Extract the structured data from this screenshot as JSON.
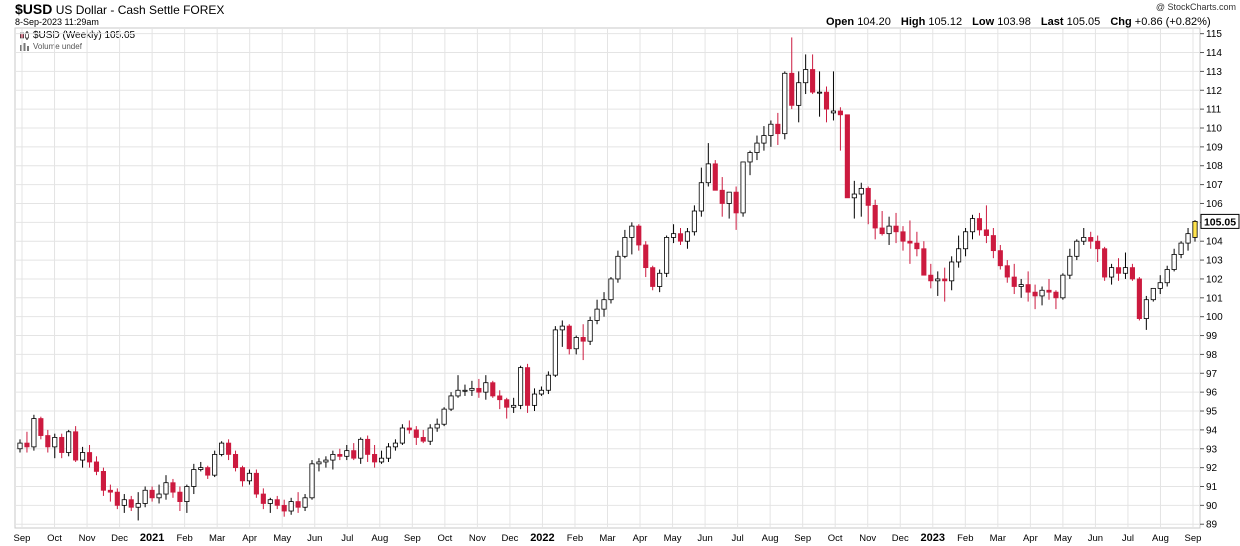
{
  "header": {
    "symbol": "$USD",
    "name": "US Dollar - Cash Settle",
    "exchange": "FOREX",
    "datetime": "8-Sep-2023 11:29am",
    "brand": "@ StockCharts.com"
  },
  "ohlc": {
    "open_label": "Open",
    "open": "104.20",
    "high_label": "High",
    "high": "105.12",
    "low_label": "Low",
    "low": "103.98",
    "last_label": "Last",
    "last": "105.05",
    "chg_label": "Chg",
    "chg": "+0.86 (+0.82%)"
  },
  "legend": {
    "series_label": "$USD (Weekly) 105.05",
    "volume_label": "Volume undef"
  },
  "colors": {
    "up_fill": "#ffffff",
    "down_fill": "#cc1a3f",
    "last_fill": "#ffe34d",
    "outline": "#000000",
    "grid": "#e4e4e4"
  },
  "chart_data": {
    "type": "candlestick",
    "period": "Weekly",
    "ylim": [
      88.8,
      115.3
    ],
    "y_ticks": [
      89,
      90,
      91,
      92,
      93,
      94,
      95,
      96,
      97,
      98,
      99,
      100,
      101,
      102,
      103,
      104,
      105,
      106,
      107,
      108,
      109,
      110,
      111,
      112,
      113,
      114,
      115
    ],
    "x_tick_labels": [
      "Sep",
      "Oct",
      "Nov",
      "Dec",
      "2021",
      "Feb",
      "Mar",
      "Apr",
      "May",
      "Jun",
      "Jul",
      "Aug",
      "Sep",
      "Oct",
      "Nov",
      "Dec",
      "2022",
      "Feb",
      "Mar",
      "Apr",
      "May",
      "Jun",
      "Jul",
      "Aug",
      "Sep",
      "Oct",
      "Nov",
      "Dec",
      "2023",
      "Feb",
      "Mar",
      "Apr",
      "May",
      "Jun",
      "Jul",
      "Aug",
      "Sep"
    ],
    "last_price_label": "105.05",
    "ohlc": [
      [
        93.0,
        93.5,
        92.8,
        93.3
      ],
      [
        93.3,
        93.9,
        92.8,
        93.1
      ],
      [
        93.1,
        94.8,
        92.9,
        94.6
      ],
      [
        94.6,
        94.7,
        93.5,
        93.7
      ],
      [
        93.7,
        94.0,
        92.8,
        93.1
      ],
      [
        93.1,
        93.8,
        92.5,
        93.6
      ],
      [
        93.6,
        93.8,
        92.5,
        92.8
      ],
      [
        92.8,
        94.0,
        92.6,
        93.9
      ],
      [
        93.9,
        94.2,
        92.3,
        92.4
      ],
      [
        92.4,
        93.1,
        92.0,
        92.8
      ],
      [
        92.8,
        93.2,
        92.0,
        92.3
      ],
      [
        92.3,
        92.6,
        91.6,
        91.8
      ],
      [
        91.8,
        92.0,
        90.5,
        90.8
      ],
      [
        90.8,
        91.1,
        90.2,
        90.7
      ],
      [
        90.7,
        90.9,
        89.8,
        90.0
      ],
      [
        90.0,
        90.6,
        89.6,
        90.3
      ],
      [
        90.3,
        90.5,
        89.7,
        89.9
      ],
      [
        89.9,
        90.7,
        89.2,
        90.1
      ],
      [
        90.1,
        91.0,
        89.9,
        90.8
      ],
      [
        90.8,
        91.0,
        90.2,
        90.4
      ],
      [
        90.4,
        91.1,
        90.1,
        90.6
      ],
      [
        90.6,
        91.6,
        90.3,
        91.2
      ],
      [
        91.2,
        91.4,
        90.4,
        90.7
      ],
      [
        90.7,
        91.0,
        89.7,
        90.2
      ],
      [
        90.2,
        91.1,
        89.6,
        91.0
      ],
      [
        91.0,
        92.2,
        90.6,
        91.9
      ],
      [
        91.9,
        92.3,
        91.8,
        92.0
      ],
      [
        92.0,
        92.1,
        91.4,
        91.6
      ],
      [
        91.6,
        92.9,
        91.5,
        92.7
      ],
      [
        92.7,
        93.4,
        92.6,
        93.3
      ],
      [
        93.3,
        93.5,
        92.4,
        92.7
      ],
      [
        92.7,
        92.9,
        91.8,
        92.0
      ],
      [
        92.0,
        92.1,
        91.0,
        91.3
      ],
      [
        91.3,
        91.9,
        91.1,
        91.7
      ],
      [
        91.7,
        91.9,
        90.4,
        90.6
      ],
      [
        90.6,
        90.9,
        89.8,
        90.1
      ],
      [
        90.1,
        90.4,
        89.6,
        90.3
      ],
      [
        90.3,
        90.5,
        89.8,
        90.0
      ],
      [
        90.0,
        90.3,
        89.4,
        89.7
      ],
      [
        89.7,
        90.4,
        89.5,
        90.2
      ],
      [
        90.2,
        90.7,
        89.6,
        89.9
      ],
      [
        89.9,
        90.6,
        89.7,
        90.4
      ],
      [
        90.4,
        92.4,
        90.3,
        92.2
      ],
      [
        92.2,
        92.5,
        91.8,
        92.3
      ],
      [
        92.3,
        92.6,
        92.0,
        92.4
      ],
      [
        92.4,
        92.9,
        91.9,
        92.7
      ],
      [
        92.7,
        93.0,
        92.4,
        92.6
      ],
      [
        92.6,
        93.2,
        92.4,
        92.9
      ],
      [
        92.9,
        93.3,
        92.4,
        92.5
      ],
      [
        92.5,
        93.6,
        92.2,
        93.5
      ],
      [
        93.5,
        93.7,
        92.3,
        92.7
      ],
      [
        92.7,
        93.2,
        92.0,
        92.3
      ],
      [
        92.3,
        92.9,
        92.2,
        92.5
      ],
      [
        92.5,
        93.3,
        92.3,
        93.1
      ],
      [
        93.1,
        93.5,
        92.9,
        93.3
      ],
      [
        93.3,
        94.3,
        93.2,
        94.1
      ],
      [
        94.1,
        94.5,
        93.8,
        94.0
      ],
      [
        94.0,
        94.2,
        93.2,
        93.6
      ],
      [
        93.6,
        94.0,
        93.3,
        93.4
      ],
      [
        93.4,
        94.3,
        93.2,
        94.1
      ],
      [
        94.1,
        94.6,
        93.9,
        94.3
      ],
      [
        94.3,
        95.2,
        94.2,
        95.1
      ],
      [
        95.1,
        96.0,
        95.0,
        95.8
      ],
      [
        95.8,
        96.9,
        95.7,
        96.1
      ],
      [
        96.1,
        96.4,
        95.8,
        96.1
      ],
      [
        96.1,
        96.6,
        95.8,
        96.2
      ],
      [
        96.2,
        96.7,
        95.7,
        96.0
      ],
      [
        96.0,
        96.9,
        95.6,
        96.5
      ],
      [
        96.5,
        96.6,
        95.7,
        95.8
      ],
      [
        95.8,
        96.1,
        95.1,
        95.6
      ],
      [
        95.6,
        95.7,
        94.6,
        95.2
      ],
      [
        95.2,
        95.7,
        94.9,
        95.3
      ],
      [
        95.3,
        97.4,
        95.1,
        97.3
      ],
      [
        97.3,
        97.5,
        94.9,
        95.3
      ],
      [
        95.3,
        96.2,
        95.0,
        95.9
      ],
      [
        95.9,
        96.3,
        95.8,
        96.1
      ],
      [
        96.1,
        97.1,
        95.9,
        96.9
      ],
      [
        96.9,
        99.5,
        96.8,
        99.3
      ],
      [
        99.3,
        99.8,
        98.4,
        99.5
      ],
      [
        99.5,
        99.6,
        98.0,
        98.3
      ],
      [
        98.3,
        99.0,
        98.0,
        98.9
      ],
      [
        98.9,
        99.6,
        97.7,
        98.7
      ],
      [
        98.7,
        100.0,
        98.5,
        99.8
      ],
      [
        99.8,
        100.9,
        99.6,
        100.4
      ],
      [
        100.4,
        101.3,
        100.0,
        100.9
      ],
      [
        100.9,
        102.1,
        100.7,
        102.0
      ],
      [
        102.0,
        103.5,
        101.8,
        103.2
      ],
      [
        103.2,
        104.6,
        103.1,
        104.2
      ],
      [
        104.2,
        105.0,
        103.3,
        104.8
      ],
      [
        104.8,
        104.9,
        103.5,
        103.8
      ],
      [
        103.8,
        104.0,
        102.1,
        102.6
      ],
      [
        102.6,
        102.7,
        101.4,
        101.6
      ],
      [
        101.6,
        102.5,
        101.3,
        102.3
      ],
      [
        102.3,
        104.3,
        102.1,
        104.2
      ],
      [
        104.2,
        104.9,
        103.9,
        104.4
      ],
      [
        104.4,
        104.7,
        103.8,
        104.0
      ],
      [
        104.0,
        104.7,
        103.6,
        104.5
      ],
      [
        104.5,
        105.9,
        104.3,
        105.6
      ],
      [
        105.6,
        107.9,
        105.3,
        107.1
      ],
      [
        107.1,
        109.2,
        106.9,
        108.1
      ],
      [
        108.1,
        108.3,
        106.7,
        106.7
      ],
      [
        106.7,
        107.4,
        105.3,
        106.0
      ],
      [
        106.0,
        106.4,
        105.2,
        106.6
      ],
      [
        106.6,
        106.9,
        104.6,
        105.5
      ],
      [
        105.5,
        108.2,
        105.3,
        108.2
      ],
      [
        108.2,
        108.8,
        107.5,
        108.7
      ],
      [
        108.7,
        109.6,
        108.3,
        109.2
      ],
      [
        109.2,
        110.1,
        108.8,
        109.6
      ],
      [
        109.6,
        110.4,
        109.0,
        110.2
      ],
      [
        110.2,
        110.8,
        109.1,
        109.7
      ],
      [
        109.7,
        113.0,
        109.4,
        112.9
      ],
      [
        112.9,
        114.8,
        111.0,
        111.2
      ],
      [
        111.2,
        113.0,
        110.3,
        112.4
      ],
      [
        112.4,
        113.9,
        111.8,
        113.1
      ],
      [
        113.1,
        113.9,
        111.8,
        111.9
      ],
      [
        111.9,
        113.0,
        110.6,
        111.9
      ],
      [
        111.9,
        112.2,
        110.3,
        111.0
      ],
      [
        110.8,
        113.0,
        110.4,
        110.9
      ],
      [
        110.9,
        111.1,
        108.8,
        110.7
      ],
      [
        110.7,
        110.7,
        106.3,
        106.3
      ],
      [
        106.3,
        107.2,
        105.2,
        106.5
      ],
      [
        106.5,
        107.1,
        105.3,
        106.8
      ],
      [
        106.8,
        106.9,
        104.9,
        105.9
      ],
      [
        105.9,
        106.2,
        104.1,
        104.7
      ],
      [
        104.7,
        105.6,
        104.3,
        104.4
      ],
      [
        104.4,
        105.3,
        103.8,
        104.8
      ],
      [
        104.8,
        105.5,
        103.9,
        104.5
      ],
      [
        104.5,
        104.8,
        103.5,
        104.0
      ],
      [
        104.0,
        105.1,
        102.8,
        103.9
      ],
      [
        103.9,
        104.5,
        103.2,
        103.6
      ],
      [
        103.6,
        104.0,
        102.3,
        102.2
      ],
      [
        102.2,
        102.8,
        101.5,
        101.9
      ],
      [
        101.9,
        102.4,
        101.1,
        102.0
      ],
      [
        102.0,
        102.6,
        100.8,
        101.9
      ],
      [
        101.9,
        103.2,
        101.4,
        102.9
      ],
      [
        102.9,
        104.3,
        102.6,
        103.6
      ],
      [
        103.6,
        104.7,
        103.2,
        104.5
      ],
      [
        104.5,
        105.4,
        104.1,
        105.2
      ],
      [
        105.2,
        105.5,
        104.3,
        104.6
      ],
      [
        104.6,
        105.9,
        103.9,
        104.3
      ],
      [
        104.3,
        104.7,
        103.1,
        103.5
      ],
      [
        103.5,
        103.8,
        102.5,
        102.7
      ],
      [
        102.7,
        103.0,
        101.8,
        102.1
      ],
      [
        102.1,
        102.8,
        101.2,
        101.6
      ],
      [
        101.6,
        102.0,
        101.0,
        101.7
      ],
      [
        101.7,
        102.4,
        100.8,
        101.3
      ],
      [
        101.3,
        101.7,
        100.4,
        101.1
      ],
      [
        101.1,
        101.6,
        100.6,
        101.4
      ],
      [
        101.4,
        102.0,
        100.9,
        101.3
      ],
      [
        101.3,
        101.4,
        100.4,
        101.0
      ],
      [
        101.0,
        102.3,
        100.9,
        102.2
      ],
      [
        102.2,
        103.6,
        102.0,
        103.2
      ],
      [
        103.2,
        104.1,
        103.0,
        104.0
      ],
      [
        104.0,
        104.7,
        103.8,
        104.2
      ],
      [
        104.2,
        104.5,
        103.6,
        104.0
      ],
      [
        104.0,
        104.3,
        102.9,
        103.6
      ],
      [
        103.6,
        103.7,
        101.9,
        102.1
      ],
      [
        102.1,
        102.8,
        101.7,
        102.6
      ],
      [
        102.6,
        103.1,
        101.9,
        102.3
      ],
      [
        102.3,
        103.4,
        102.0,
        102.6
      ],
      [
        102.6,
        102.8,
        101.9,
        102.0
      ],
      [
        102.0,
        102.1,
        99.8,
        99.9
      ],
      [
        99.9,
        101.1,
        99.3,
        100.9
      ],
      [
        100.9,
        101.3,
        100.8,
        101.5
      ],
      [
        101.5,
        102.2,
        101.2,
        101.8
      ],
      [
        101.8,
        102.7,
        101.6,
        102.5
      ],
      [
        102.5,
        103.6,
        102.4,
        103.3
      ],
      [
        103.3,
        104.0,
        103.1,
        103.9
      ],
      [
        103.9,
        104.7,
        103.5,
        104.4
      ],
      [
        104.2,
        105.12,
        103.98,
        105.05
      ]
    ]
  }
}
